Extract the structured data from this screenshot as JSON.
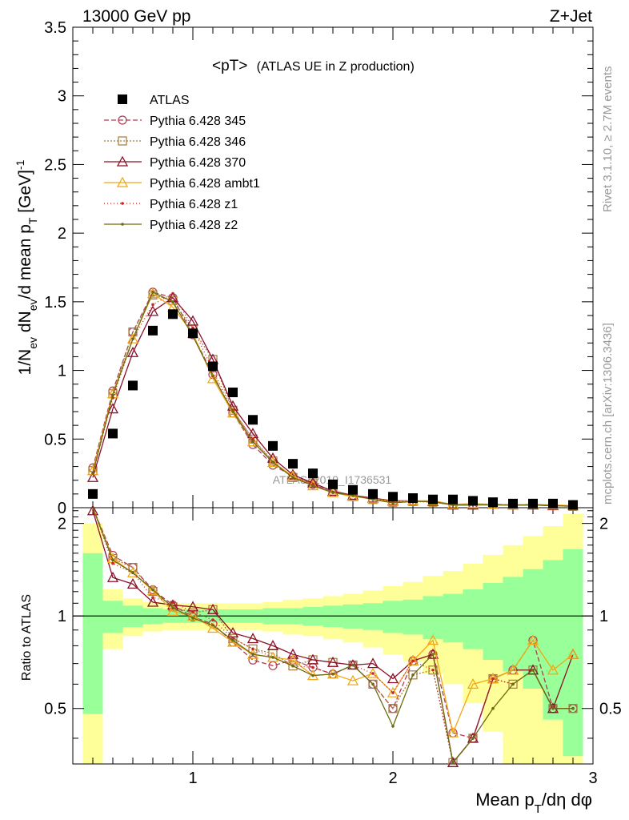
{
  "header": {
    "left": "13000 GeV pp",
    "right": "Z+Jet"
  },
  "side_text": {
    "rivet": "Rivet 3.1.10, ≥ 2.7M events",
    "mcplots": "mcplots.cern.ch [arXiv:1306.3436]"
  },
  "chart_data": {
    "type": "scatter",
    "title": "<pT>",
    "subtitle": "(ATLAS UE in Z production)",
    "watermark": "ATLAS_2019_I1736531",
    "xlabel": "Mean p_T/dη dφ",
    "ylabel": "1/N_ev dN_ev/d mean p_T [GeV]^-1",
    "ratio_ylabel": "Ratio to ATLAS",
    "xlim": [
      0.4,
      3.0
    ],
    "ylim": [
      0,
      3.5
    ],
    "ratio_ylim": [
      0.33,
      2.25
    ],
    "x_ticks": [
      1,
      2,
      3
    ],
    "y_ticks": [
      0,
      0.5,
      1,
      1.5,
      2,
      2.5,
      3,
      3.5
    ],
    "y_tick_labels": [
      "0",
      "0.5",
      "1",
      "1.5",
      "2",
      "2.5",
      "3",
      "3.5"
    ],
    "ratio_ticks": [
      0.5,
      1,
      2
    ],
    "legend_position": "top-left",
    "x": [
      0.5,
      0.6,
      0.7,
      0.8,
      0.9,
      1.0,
      1.1,
      1.2,
      1.3,
      1.4,
      1.5,
      1.6,
      1.7,
      1.8,
      1.9,
      2.0,
      2.1,
      2.2,
      2.3,
      2.4,
      2.5,
      2.6,
      2.7,
      2.8,
      2.9
    ],
    "data": {
      "name": "ATLAS",
      "values": [
        0.1,
        0.54,
        0.89,
        1.29,
        1.41,
        1.27,
        1.03,
        0.84,
        0.64,
        0.45,
        0.32,
        0.25,
        0.17,
        0.13,
        0.1,
        0.08,
        0.07,
        0.06,
        0.06,
        0.05,
        0.04,
        0.03,
        0.03,
        0.03,
        0.02
      ],
      "band_inner": [
        [
          1.6,
          0.48
        ],
        [
          1.12,
          0.88
        ],
        [
          1.08,
          0.92
        ],
        [
          1.06,
          0.94
        ],
        [
          1.05,
          0.95
        ],
        [
          1.05,
          0.95
        ],
        [
          1.05,
          0.95
        ],
        [
          1.05,
          0.95
        ],
        [
          1.05,
          0.95
        ],
        [
          1.06,
          0.94
        ],
        [
          1.06,
          0.94
        ],
        [
          1.07,
          0.93
        ],
        [
          1.08,
          0.92
        ],
        [
          1.09,
          0.91
        ],
        [
          1.1,
          0.9
        ],
        [
          1.12,
          0.88
        ],
        [
          1.13,
          0.87
        ],
        [
          1.16,
          0.84
        ],
        [
          1.18,
          0.82
        ],
        [
          1.22,
          0.78
        ],
        [
          1.28,
          0.72
        ],
        [
          1.34,
          0.66
        ],
        [
          1.42,
          0.58
        ],
        [
          1.52,
          0.46
        ],
        [
          1.65,
          0.35
        ]
      ],
      "band_outer": [
        [
          2.0,
          0.3
        ],
        [
          1.22,
          0.78
        ],
        [
          1.14,
          0.86
        ],
        [
          1.11,
          0.89
        ],
        [
          1.1,
          0.9
        ],
        [
          1.1,
          0.9
        ],
        [
          1.1,
          0.9
        ],
        [
          1.1,
          0.9
        ],
        [
          1.1,
          0.9
        ],
        [
          1.11,
          0.89
        ],
        [
          1.13,
          0.87
        ],
        [
          1.14,
          0.86
        ],
        [
          1.16,
          0.84
        ],
        [
          1.18,
          0.82
        ],
        [
          1.21,
          0.79
        ],
        [
          1.25,
          0.75
        ],
        [
          1.29,
          0.71
        ],
        [
          1.35,
          0.65
        ],
        [
          1.4,
          0.6
        ],
        [
          1.48,
          0.52
        ],
        [
          1.58,
          0.42
        ],
        [
          1.7,
          0.33
        ],
        [
          1.82,
          0.33
        ],
        [
          1.96,
          0.33
        ],
        [
          2.15,
          0.33
        ]
      ]
    },
    "series": [
      {
        "name": "Pythia 6.428 345",
        "color": "#b03c50",
        "dash": "6,3",
        "marker": "circle",
        "values": [
          0.29,
          0.85,
          1.28,
          1.57,
          1.53,
          1.26,
          0.97,
          0.69,
          0.46,
          0.31,
          0.23,
          0.17,
          0.11,
          0.09,
          0.06,
          0.04,
          0.05,
          0.045,
          0.025,
          0.02,
          0.025,
          0.02,
          0.025,
          0.015,
          0.01
        ]
      },
      {
        "name": "Pythia 6.428 346",
        "color": "#a57a3a",
        "dash": "2,2",
        "marker": "square",
        "values": [
          0.27,
          0.83,
          1.28,
          1.55,
          1.51,
          1.3,
          1.08,
          0.71,
          0.5,
          0.34,
          0.22,
          0.18,
          0.12,
          0.09,
          0.06,
          0.04,
          0.045,
          0.04,
          0.02,
          0.02,
          0.025,
          0.018,
          0.02,
          0.015,
          0.01
        ]
      },
      {
        "name": "Pythia 6.428 370",
        "color": "#8b1028",
        "dash": "",
        "marker": "triangle-open",
        "values": [
          0.22,
          0.72,
          1.13,
          1.43,
          1.53,
          1.36,
          1.08,
          0.74,
          0.54,
          0.36,
          0.24,
          0.18,
          0.12,
          0.09,
          0.07,
          0.05,
          0.05,
          0.045,
          0.02,
          0.02,
          0.025,
          0.02,
          0.02,
          0.015,
          0.015
        ]
      },
      {
        "name": "Pythia 6.428 ambt1",
        "color": "#f0a818",
        "dash": "",
        "marker": "triangle-open",
        "values": [
          0.27,
          0.83,
          1.23,
          1.56,
          1.46,
          1.27,
          0.94,
          0.69,
          0.48,
          0.33,
          0.23,
          0.16,
          0.11,
          0.08,
          0.065,
          0.045,
          0.05,
          0.05,
          0.025,
          0.03,
          0.025,
          0.02,
          0.025,
          0.02,
          0.015
        ]
      },
      {
        "name": "Pythia 6.428 z1",
        "color": "#cc2222",
        "dash": "1,3",
        "marker": "dot",
        "values": [
          0.25,
          0.8,
          1.23,
          1.48,
          1.56,
          1.31,
          1.0,
          0.71,
          0.5,
          0.33,
          0.22,
          0.17,
          0.11,
          0.09,
          0.065,
          0.045,
          0.05,
          0.04,
          0.02,
          0.02,
          0.025,
          0.018,
          0.02,
          0.015,
          0.01
        ]
      },
      {
        "name": "Pythia 6.428 z2",
        "color": "#6b6b10",
        "dash": "",
        "marker": "dot",
        "values": [
          0.25,
          0.82,
          1.23,
          1.57,
          1.5,
          1.25,
          0.96,
          0.7,
          0.48,
          0.33,
          0.22,
          0.16,
          0.11,
          0.09,
          0.06,
          0.035,
          0.045,
          0.045,
          0.02,
          0.02,
          0.02,
          0.018,
          0.02,
          0.015,
          0.01
        ]
      }
    ]
  }
}
